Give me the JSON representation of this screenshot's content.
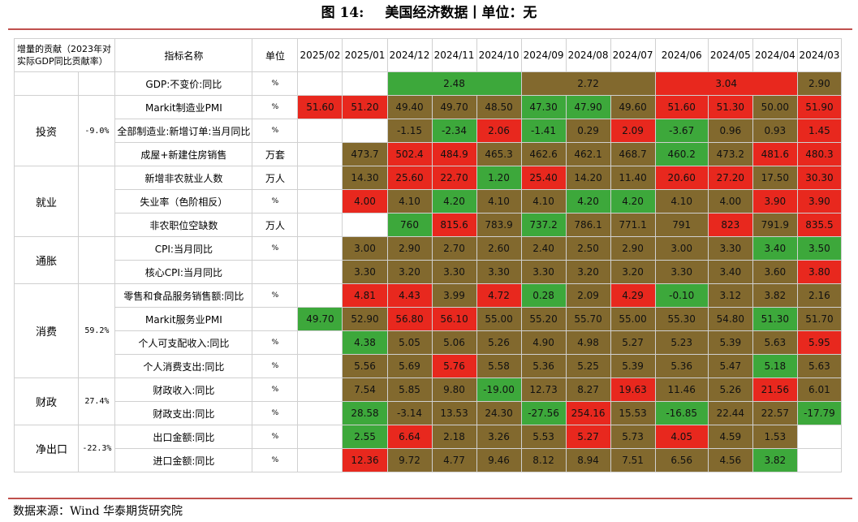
{
  "title": {
    "number": "图 14:",
    "text": "美国经济数据丨单位：无"
  },
  "source": "数据来源：Wind 华泰期货研究院",
  "header": {
    "contribution": "增量的贡献（2023年对实际GDP同比贡献率）",
    "indicator": "指标名称",
    "unit": "单位",
    "months": [
      "2025/02",
      "2025/01",
      "2024/12",
      "2024/11",
      "2024/10",
      "2024/09",
      "2024/08",
      "2024/07",
      "2024/06",
      "2024/05",
      "2024/04",
      "2024/03"
    ]
  },
  "colors": {
    "red": "#e8281e",
    "green": "#3da83b",
    "olive": "#82692e"
  },
  "gdp": {
    "indicator": "GDP:不变价:同比",
    "unit": "%",
    "q4": "2.48",
    "q3": "2.72",
    "q2": "3.04",
    "q1": "2.90"
  },
  "groups": [
    {
      "name": "投资",
      "pct": "-9.0%",
      "rows": [
        {
          "indicator": "Markit制造业PMI",
          "unit": "%",
          "values": [
            "51.60",
            "51.20",
            "49.40",
            "49.70",
            "48.50",
            "47.30",
            "47.90",
            "49.60",
            "51.60",
            "51.30",
            "50.00",
            "51.90"
          ]
        },
        {
          "indicator": "全部制造业:新增订单:当月同比",
          "unit": "%",
          "values": [
            "",
            "",
            "-1.15",
            "-2.34",
            "2.06",
            "-1.41",
            "0.29",
            "2.09",
            "-3.67",
            "0.96",
            "0.93",
            "1.45"
          ]
        },
        {
          "indicator": "成屋+新建住房销售",
          "unit": "万套",
          "values": [
            "",
            "473.7",
            "502.4",
            "484.9",
            "465.3",
            "462.6",
            "462.1",
            "468.7",
            "460.2",
            "473.2",
            "481.6",
            "480.3"
          ]
        }
      ]
    },
    {
      "name": "就业",
      "pct": "",
      "rows": [
        {
          "indicator": "新增非农就业人数",
          "unit": "万人",
          "values": [
            "",
            "14.30",
            "25.60",
            "22.70",
            "1.20",
            "25.40",
            "14.20",
            "11.40",
            "20.60",
            "27.20",
            "17.50",
            "30.30"
          ]
        },
        {
          "indicator": "失业率（色阶相反）",
          "unit": "%",
          "values": [
            "",
            "4.00",
            "4.10",
            "4.20",
            "4.10",
            "4.10",
            "4.20",
            "4.20",
            "4.10",
            "4.00",
            "3.90",
            "3.90"
          ]
        },
        {
          "indicator": "非农职位空缺数",
          "unit": "万人",
          "values": [
            "",
            "",
            "760",
            "815.6",
            "783.9",
            "737.2",
            "786.1",
            "771.1",
            "791",
            "823",
            "791.9",
            "835.5"
          ]
        }
      ]
    },
    {
      "name": "通胀",
      "pct": "",
      "rows": [
        {
          "indicator": "CPI:当月同比",
          "unit": "%",
          "values": [
            "",
            "3.00",
            "2.90",
            "2.70",
            "2.60",
            "2.40",
            "2.50",
            "2.90",
            "3.00",
            "3.30",
            "3.40",
            "3.50"
          ]
        },
        {
          "indicator": "核心CPI:当月同比",
          "unit": "",
          "values": [
            "",
            "3.30",
            "3.20",
            "3.30",
            "3.30",
            "3.30",
            "3.20",
            "3.20",
            "3.30",
            "3.40",
            "3.60",
            "3.80"
          ]
        }
      ]
    },
    {
      "name": "消费",
      "pct": "59.2%",
      "rows": [
        {
          "indicator": "零售和食品服务销售额:同比",
          "unit": "%",
          "values": [
            "",
            "4.81",
            "4.43",
            "3.99",
            "4.72",
            "0.28",
            "2.09",
            "4.29",
            "-0.10",
            "3.12",
            "3.82",
            "2.16"
          ]
        },
        {
          "indicator": "Markit服务业PMI",
          "unit": "",
          "values": [
            "49.70",
            "52.90",
            "56.80",
            "56.10",
            "55.00",
            "55.20",
            "55.70",
            "55.00",
            "55.30",
            "54.80",
            "51.30",
            "51.70"
          ]
        },
        {
          "indicator": "个人可支配收入:同比",
          "unit": "%",
          "values": [
            "",
            "4.38",
            "5.05",
            "5.06",
            "5.26",
            "4.90",
            "4.98",
            "5.27",
            "5.23",
            "5.39",
            "5.63",
            "5.95"
          ]
        },
        {
          "indicator": "个人消费支出:同比",
          "unit": "%",
          "values": [
            "",
            "5.56",
            "5.69",
            "5.76",
            "5.58",
            "5.36",
            "5.25",
            "5.39",
            "5.36",
            "5.47",
            "5.18",
            "5.63"
          ]
        }
      ]
    },
    {
      "name": "财政",
      "pct": "27.4%",
      "rows": [
        {
          "indicator": "财政收入:同比",
          "unit": "%",
          "values": [
            "",
            "7.54",
            "5.85",
            "9.80",
            "-19.00",
            "12.73",
            "8.27",
            "19.63",
            "11.46",
            "5.26",
            "21.56",
            "6.01"
          ]
        },
        {
          "indicator": "财政支出:同比",
          "unit": "%",
          "values": [
            "",
            "28.58",
            "-3.14",
            "13.53",
            "24.30",
            "-27.56",
            "254.16",
            "15.53",
            "-16.85",
            "22.44",
            "22.57",
            "-17.79"
          ]
        }
      ]
    },
    {
      "name": "净出口",
      "pct": "-22.3%",
      "rows": [
        {
          "indicator": "出口金额:同比",
          "unit": "%",
          "values": [
            "",
            "2.55",
            "6.64",
            "2.18",
            "3.26",
            "5.53",
            "5.27",
            "5.73",
            "4.05",
            "4.59",
            "1.53",
            ""
          ]
        },
        {
          "indicator": "进口金额:同比",
          "unit": "%",
          "values": [
            "",
            "12.36",
            "9.72",
            "4.77",
            "9.46",
            "8.12",
            "8.94",
            "7.51",
            "6.56",
            "4.56",
            "3.82",
            ""
          ]
        }
      ]
    }
  ],
  "cell_colors": [
    [
      "red",
      "red",
      "olive",
      "olive",
      "olive",
      "green",
      "green",
      "olive",
      "red",
      "red",
      "olive",
      "red"
    ],
    [
      "",
      "",
      "olive",
      "green",
      "red",
      "green",
      "olive",
      "red",
      "green",
      "olive",
      "olive",
      "red"
    ],
    [
      "",
      "olive",
      "red",
      "red",
      "olive",
      "olive",
      "olive",
      "olive",
      "green",
      "olive",
      "red",
      "red"
    ],
    [
      "",
      "olive",
      "red",
      "red",
      "green",
      "red",
      "olive",
      "olive",
      "red",
      "red",
      "olive",
      "red"
    ],
    [
      "",
      "red",
      "olive",
      "green",
      "olive",
      "olive",
      "green",
      "green",
      "olive",
      "olive",
      "red",
      "red"
    ],
    [
      "",
      "",
      "green",
      "red",
      "olive",
      "green",
      "olive",
      "olive",
      "olive",
      "red",
      "olive",
      "red"
    ],
    [
      "",
      "olive",
      "olive",
      "olive",
      "olive",
      "olive",
      "olive",
      "olive",
      "olive",
      "olive",
      "green",
      "green"
    ],
    [
      "",
      "olive",
      "olive",
      "olive",
      "olive",
      "olive",
      "olive",
      "olive",
      "olive",
      "olive",
      "olive",
      "red"
    ],
    [
      "",
      "red",
      "red",
      "olive",
      "red",
      "green",
      "olive",
      "red",
      "green",
      "olive",
      "olive",
      "olive"
    ],
    [
      "green",
      "olive",
      "red",
      "red",
      "olive",
      "olive",
      "olive",
      "olive",
      "olive",
      "olive",
      "green",
      "olive"
    ],
    [
      "",
      "green",
      "olive",
      "olive",
      "olive",
      "olive",
      "olive",
      "olive",
      "olive",
      "olive",
      "olive",
      "red"
    ],
    [
      "",
      "olive",
      "olive",
      "red",
      "olive",
      "olive",
      "olive",
      "olive",
      "olive",
      "olive",
      "green",
      "olive"
    ],
    [
      "",
      "olive",
      "olive",
      "olive",
      "green",
      "olive",
      "olive",
      "red",
      "olive",
      "olive",
      "red",
      "olive"
    ],
    [
      "",
      "green",
      "olive",
      "olive",
      "olive",
      "green",
      "red",
      "olive",
      "green",
      "olive",
      "olive",
      "green"
    ],
    [
      "",
      "green",
      "red",
      "olive",
      "olive",
      "olive",
      "red",
      "olive",
      "red",
      "olive",
      "olive",
      "green"
    ],
    [
      "",
      "red",
      "olive",
      "olive",
      "olive",
      "olive",
      "olive",
      "olive",
      "olive",
      "olive",
      "green",
      "green"
    ]
  ]
}
